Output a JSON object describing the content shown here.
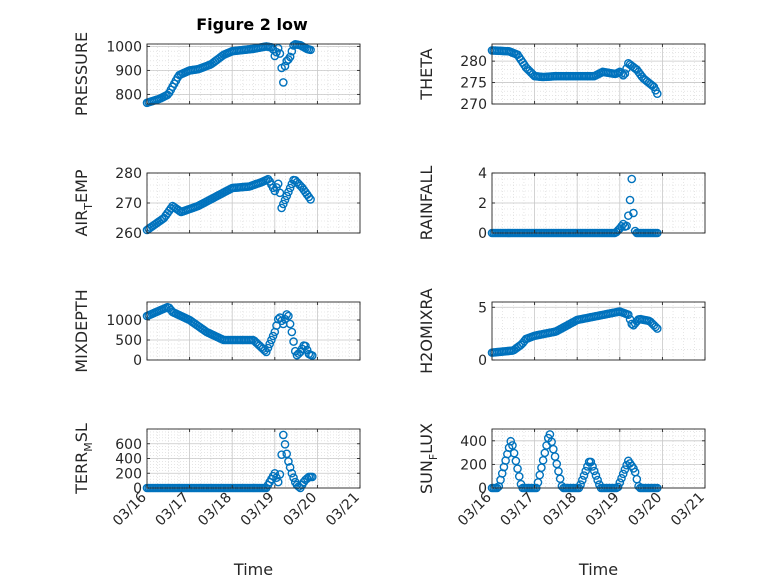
{
  "figure": {
    "title": "Figure 2 low",
    "colors": {
      "marker": "#0072BD",
      "grid": "#d6d6d6",
      "axis": "#262626",
      "background": "#ffffff"
    }
  },
  "chart_data": [
    {
      "id": "pressure",
      "type": "scatter",
      "marker": "open-circle",
      "title": "Figure 2 low",
      "ylabel": "PRESSURE",
      "xlabel": "",
      "ylim": [
        760,
        1010
      ],
      "yticks": [
        "800",
        "900",
        "1000"
      ],
      "ytick_values": [
        800,
        900,
        1000
      ],
      "x_unit": "day offset from 03/16",
      "knots": [
        [
          0,
          765
        ],
        [
          0.3,
          782
        ],
        [
          0.5,
          800
        ],
        [
          0.75,
          880
        ],
        [
          1.0,
          900
        ],
        [
          1.2,
          905
        ],
        [
          1.5,
          925
        ],
        [
          1.8,
          965
        ],
        [
          2.0,
          980
        ],
        [
          2.5,
          990
        ],
        [
          2.8,
          1000
        ],
        [
          2.95,
          995
        ],
        [
          3.0,
          960
        ],
        [
          3.1,
          1000
        ],
        [
          3.2,
          850
        ],
        [
          3.25,
          935
        ],
        [
          3.35,
          950
        ],
        [
          3.45,
          1010
        ],
        [
          3.6,
          1005
        ],
        [
          3.75,
          990
        ],
        [
          3.85,
          985
        ]
      ]
    },
    {
      "id": "theta",
      "type": "scatter",
      "marker": "open-circle",
      "title": "",
      "ylabel": "THETA",
      "xlabel": "",
      "ylim": [
        270,
        284
      ],
      "yticks": [
        "270",
        "275",
        "280"
      ],
      "ytick_values": [
        270,
        275,
        280
      ],
      "x_unit": "day offset from 03/16",
      "knots": [
        [
          0,
          282.5
        ],
        [
          0.4,
          282.3
        ],
        [
          0.6,
          281.5
        ],
        [
          0.8,
          278.5
        ],
        [
          1.0,
          276.5
        ],
        [
          1.2,
          276.3
        ],
        [
          1.5,
          276.5
        ],
        [
          2.0,
          276.5
        ],
        [
          2.4,
          276.5
        ],
        [
          2.6,
          277.5
        ],
        [
          2.9,
          277
        ],
        [
          3.0,
          277.5
        ],
        [
          3.1,
          276.5
        ],
        [
          3.2,
          279.5
        ],
        [
          3.4,
          278
        ],
        [
          3.55,
          276
        ],
        [
          3.8,
          274
        ],
        [
          3.9,
          272
        ]
      ]
    },
    {
      "id": "air_temp",
      "type": "scatter",
      "marker": "open-circle",
      "title": "",
      "ylabel": "AIR_TEMP",
      "ylabel_parts": [
        "AIR",
        "T",
        "EMP"
      ],
      "xlabel": "",
      "ylim": [
        260,
        280
      ],
      "yticks": [
        "260",
        "270",
        "280"
      ],
      "ytick_values": [
        260,
        270,
        280
      ],
      "x_unit": "day offset from 03/16",
      "knots": [
        [
          0,
          261
        ],
        [
          0.4,
          265
        ],
        [
          0.6,
          269
        ],
        [
          0.8,
          267
        ],
        [
          1.2,
          269
        ],
        [
          1.6,
          272
        ],
        [
          2.0,
          275
        ],
        [
          2.4,
          275.5
        ],
        [
          2.7,
          277
        ],
        [
          2.85,
          278
        ],
        [
          3.0,
          274
        ],
        [
          3.1,
          277
        ],
        [
          3.15,
          268
        ],
        [
          3.3,
          273
        ],
        [
          3.45,
          278
        ],
        [
          3.65,
          275
        ],
        [
          3.85,
          271
        ]
      ]
    },
    {
      "id": "rainfall",
      "type": "scatter",
      "marker": "open-circle",
      "title": "",
      "ylabel": "RAINFALL",
      "xlabel": "",
      "ylim": [
        0,
        4
      ],
      "yticks": [
        "0",
        "2",
        "4"
      ],
      "ytick_values": [
        0,
        2,
        4
      ],
      "x_unit": "day offset from 03/16",
      "knots": [
        [
          0,
          0
        ],
        [
          2.9,
          0
        ],
        [
          3.0,
          0.3
        ],
        [
          3.08,
          0.6
        ],
        [
          3.15,
          0.3
        ],
        [
          3.22,
          1.5
        ],
        [
          3.28,
          3.6
        ],
        [
          3.34,
          0.2
        ],
        [
          3.4,
          0
        ],
        [
          3.9,
          0
        ]
      ]
    },
    {
      "id": "mixdepth",
      "type": "scatter",
      "marker": "open-circle",
      "title": "",
      "ylabel": "MIXDEPTH",
      "xlabel": "",
      "ylim": [
        0,
        1450
      ],
      "yticks": [
        "0",
        "500",
        "1000"
      ],
      "ytick_values": [
        0,
        500,
        1000
      ],
      "x_unit": "day offset from 03/16",
      "knots": [
        [
          0,
          1100
        ],
        [
          0.5,
          1330
        ],
        [
          0.6,
          1200
        ],
        [
          1.0,
          1000
        ],
        [
          1.4,
          700
        ],
        [
          1.8,
          500
        ],
        [
          2.2,
          500
        ],
        [
          2.5,
          500
        ],
        [
          2.7,
          300
        ],
        [
          2.8,
          200
        ],
        [
          3.0,
          700
        ],
        [
          3.1,
          1100
        ],
        [
          3.2,
          900
        ],
        [
          3.3,
          1200
        ],
        [
          3.4,
          700
        ],
        [
          3.5,
          100
        ],
        [
          3.6,
          200
        ],
        [
          3.7,
          400
        ],
        [
          3.8,
          150
        ],
        [
          3.9,
          100
        ]
      ]
    },
    {
      "id": "h2omixra",
      "type": "scatter",
      "marker": "open-circle",
      "title": "",
      "ylabel": "H2OMIXRA",
      "xlabel": "",
      "ylim": [
        0,
        5.5
      ],
      "yticks": [
        "0",
        "5"
      ],
      "ytick_values": [
        0,
        5
      ],
      "x_unit": "day offset from 03/16",
      "knots": [
        [
          0,
          0.7
        ],
        [
          0.5,
          0.9
        ],
        [
          0.7,
          1.5
        ],
        [
          0.8,
          2.0
        ],
        [
          1.0,
          2.3
        ],
        [
          1.5,
          2.7
        ],
        [
          2.0,
          3.8
        ],
        [
          2.5,
          4.2
        ],
        [
          3.0,
          4.6
        ],
        [
          3.2,
          4.3
        ],
        [
          3.3,
          3.2
        ],
        [
          3.45,
          3.9
        ],
        [
          3.7,
          3.7
        ],
        [
          3.9,
          2.9
        ]
      ]
    },
    {
      "id": "terr_msl",
      "type": "scatter",
      "marker": "open-circle",
      "title": "",
      "ylabel": "TERR_MSL",
      "ylabel_parts": [
        "TERR",
        "M",
        "SL"
      ],
      "xlabel": "Time",
      "ylim": [
        0,
        800
      ],
      "yticks": [
        "0",
        "200",
        "400",
        "600"
      ],
      "ytick_values": [
        0,
        200,
        400,
        600
      ],
      "x_unit": "day offset from 03/16",
      "knots": [
        [
          0,
          0
        ],
        [
          2.8,
          0
        ],
        [
          2.9,
          100
        ],
        [
          3.0,
          200
        ],
        [
          3.1,
          50
        ],
        [
          3.2,
          720
        ],
        [
          3.3,
          400
        ],
        [
          3.4,
          200
        ],
        [
          3.5,
          50
        ],
        [
          3.6,
          0
        ],
        [
          3.7,
          100
        ],
        [
          3.8,
          150
        ],
        [
          3.9,
          150
        ]
      ]
    },
    {
      "id": "sun_flux",
      "type": "scatter",
      "marker": "open-circle",
      "title": "",
      "ylabel": "SUN_FLUX",
      "ylabel_parts": [
        "SUN",
        "F",
        "LUX"
      ],
      "xlabel": "Time",
      "ylim": [
        0,
        500
      ],
      "yticks": [
        "0",
        "200",
        "400"
      ],
      "ytick_values": [
        0,
        200,
        400
      ],
      "x_unit": "day offset from 03/16",
      "knots": [
        [
          0,
          0
        ],
        [
          0.15,
          0
        ],
        [
          0.45,
          410
        ],
        [
          0.7,
          0
        ],
        [
          1.05,
          0
        ],
        [
          1.35,
          470
        ],
        [
          1.65,
          0
        ],
        [
          2.05,
          0
        ],
        [
          2.3,
          240
        ],
        [
          2.55,
          0
        ],
        [
          2.95,
          0
        ],
        [
          3.2,
          230
        ],
        [
          3.35,
          150
        ],
        [
          3.45,
          0
        ],
        [
          3.9,
          0
        ]
      ]
    }
  ],
  "x_axis": {
    "ticks": [
      "03/16",
      "03/17",
      "03/18",
      "03/19",
      "03/20",
      "03/21"
    ],
    "xlim": [
      "03/16",
      "03/21"
    ]
  }
}
